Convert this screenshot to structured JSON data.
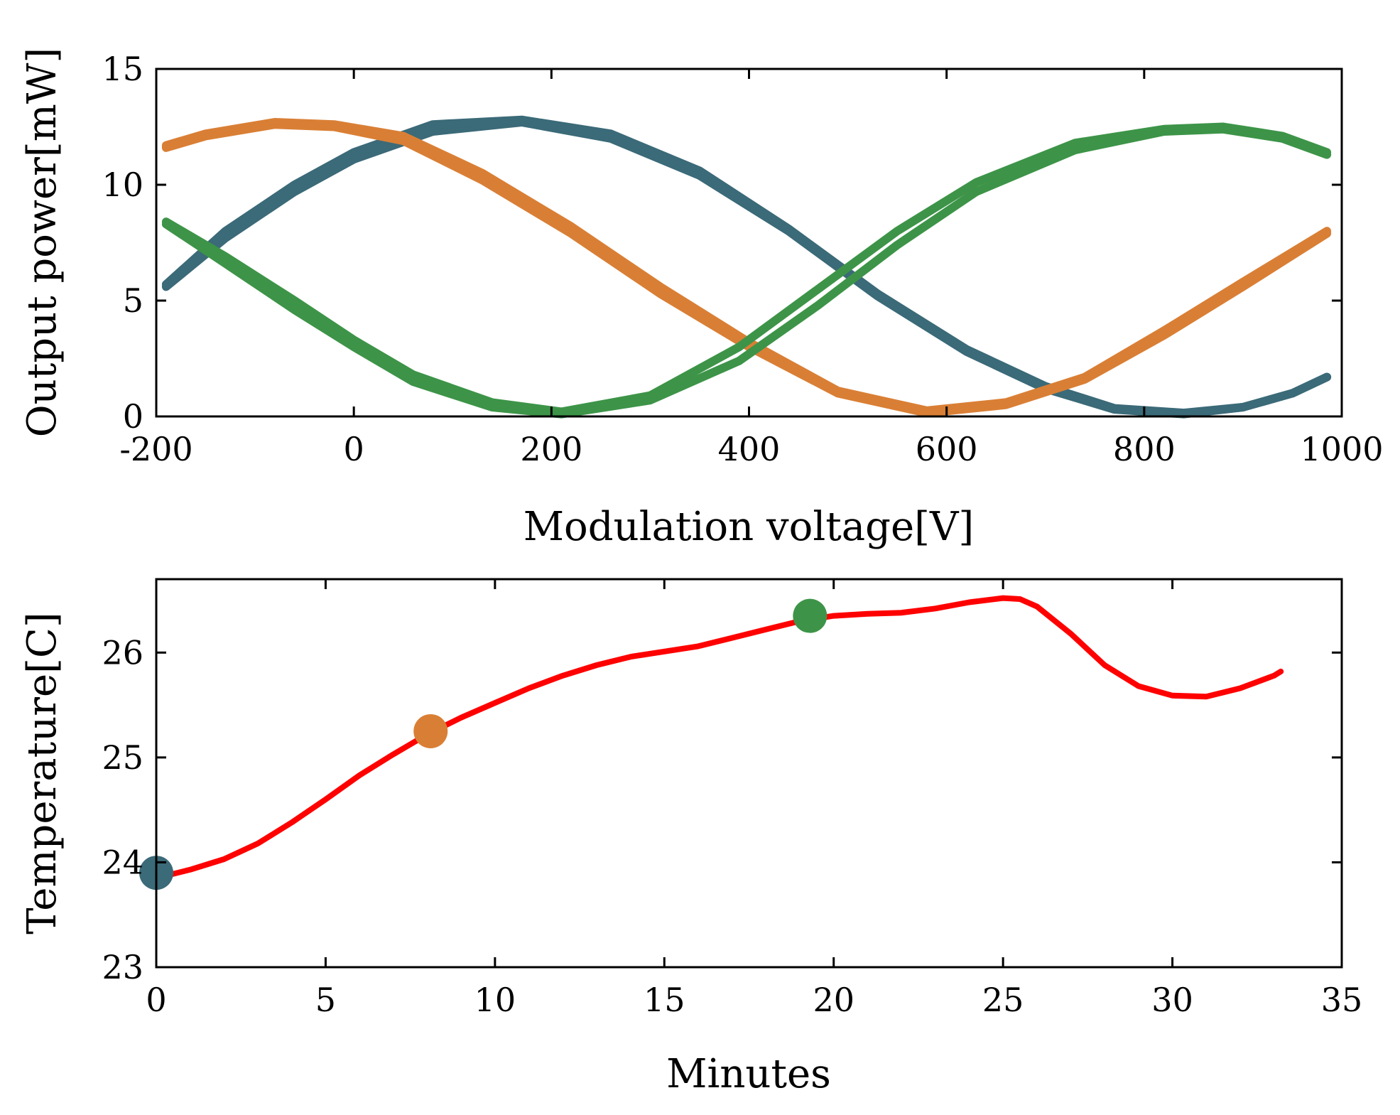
{
  "chart_data": [
    {
      "type": "line",
      "xlabel": "Modulation voltage[V]",
      "ylabel": "Output power[mW]",
      "xlim": [
        -200,
        1000
      ],
      "ylim": [
        0,
        15
      ],
      "xticks": [
        "-200",
        "0",
        "200",
        "400",
        "600",
        "800",
        "1000"
      ],
      "yticks": [
        "0",
        "5",
        "10",
        "15"
      ],
      "grid": false,
      "series": [
        {
          "color": "#3b6a78",
          "points": [
            [
              -190,
              5.6
            ],
            [
              -130,
              7.7
            ],
            [
              -60,
              9.7
            ],
            [
              0,
              11.1
            ],
            [
              80,
              12.3
            ],
            [
              170,
              12.7
            ],
            [
              260,
              12.0
            ],
            [
              350,
              10.4
            ],
            [
              440,
              8.0
            ],
            [
              530,
              5.2
            ],
            [
              620,
              2.8
            ],
            [
              700,
              1.2
            ],
            [
              770,
              0.3
            ],
            [
              840,
              0.1
            ],
            [
              900,
              0.4
            ],
            [
              950,
              1.0
            ],
            [
              985,
              1.7
            ]
          ]
        },
        {
          "color": "#3b6a78",
          "points": [
            [
              985,
              1.7
            ],
            [
              950,
              1.0
            ],
            [
              900,
              0.4
            ],
            [
              840,
              0.15
            ],
            [
              770,
              0.35
            ],
            [
              700,
              1.3
            ],
            [
              620,
              2.9
            ],
            [
              530,
              5.3
            ],
            [
              440,
              8.1
            ],
            [
              350,
              10.6
            ],
            [
              260,
              12.2
            ],
            [
              170,
              12.8
            ],
            [
              80,
              12.6
            ],
            [
              0,
              11.4
            ],
            [
              -60,
              10.0
            ],
            [
              -130,
              8.0
            ],
            [
              -190,
              5.7
            ]
          ]
        },
        {
          "color": "#d97f35",
          "points": [
            [
              -190,
              11.6
            ],
            [
              -150,
              12.1
            ],
            [
              -80,
              12.6
            ],
            [
              -20,
              12.5
            ],
            [
              50,
              11.9
            ],
            [
              130,
              10.2
            ],
            [
              220,
              7.9
            ],
            [
              310,
              5.3
            ],
            [
              400,
              3.0
            ],
            [
              490,
              1.0
            ],
            [
              580,
              0.15
            ],
            [
              660,
              0.5
            ],
            [
              740,
              1.6
            ],
            [
              820,
              3.5
            ],
            [
              900,
              5.6
            ],
            [
              985,
              7.9
            ]
          ]
        },
        {
          "color": "#d97f35",
          "points": [
            [
              985,
              8.0
            ],
            [
              900,
              5.8
            ],
            [
              820,
              3.7
            ],
            [
              740,
              1.7
            ],
            [
              660,
              0.6
            ],
            [
              580,
              0.25
            ],
            [
              490,
              1.1
            ],
            [
              400,
              3.2
            ],
            [
              310,
              5.6
            ],
            [
              220,
              8.2
            ],
            [
              130,
              10.5
            ],
            [
              50,
              12.1
            ],
            [
              -20,
              12.6
            ],
            [
              -80,
              12.7
            ],
            [
              -150,
              12.2
            ],
            [
              -190,
              11.7
            ]
          ]
        },
        {
          "color": "#3d9448",
          "points": [
            [
              -190,
              8.3
            ],
            [
              -130,
              6.6
            ],
            [
              -60,
              4.6
            ],
            [
              0,
              3.0
            ],
            [
              60,
              1.5
            ],
            [
              140,
              0.4
            ],
            [
              210,
              0.1
            ],
            [
              300,
              0.7
            ],
            [
              390,
              2.4
            ],
            [
              470,
              4.8
            ],
            [
              550,
              7.4
            ],
            [
              630,
              9.7
            ],
            [
              730,
              11.5
            ],
            [
              820,
              12.3
            ],
            [
              880,
              12.4
            ],
            [
              940,
              12.0
            ],
            [
              985,
              11.3
            ]
          ]
        },
        {
          "color": "#3d9448",
          "points": [
            [
              985,
              11.4
            ],
            [
              940,
              12.1
            ],
            [
              880,
              12.5
            ],
            [
              820,
              12.4
            ],
            [
              730,
              11.8
            ],
            [
              630,
              10.1
            ],
            [
              550,
              8.0
            ],
            [
              470,
              5.5
            ],
            [
              390,
              3.0
            ],
            [
              300,
              0.9
            ],
            [
              210,
              0.2
            ],
            [
              140,
              0.6
            ],
            [
              60,
              1.8
            ],
            [
              0,
              3.3
            ],
            [
              -60,
              5.0
            ],
            [
              -130,
              6.9
            ],
            [
              -190,
              8.4
            ]
          ]
        }
      ]
    },
    {
      "type": "line",
      "xlabel": "Minutes",
      "ylabel": "Temperature[C]",
      "xlim": [
        0,
        35
      ],
      "ylim": [
        23,
        26.7
      ],
      "xticks": [
        "0",
        "5",
        "10",
        "15",
        "20",
        "25",
        "30",
        "35"
      ],
      "yticks": [
        "23",
        "24",
        "25",
        "26"
      ],
      "grid": false,
      "series": [
        {
          "color": "#ff0000",
          "points": [
            [
              0,
              23.85
            ],
            [
              1,
              23.93
            ],
            [
              2,
              24.03
            ],
            [
              3,
              24.18
            ],
            [
              4,
              24.38
            ],
            [
              5,
              24.6
            ],
            [
              6,
              24.83
            ],
            [
              7,
              25.03
            ],
            [
              8,
              25.22
            ],
            [
              9,
              25.38
            ],
            [
              10,
              25.52
            ],
            [
              11,
              25.66
            ],
            [
              12,
              25.78
            ],
            [
              13,
              25.88
            ],
            [
              14,
              25.96
            ],
            [
              15,
              26.01
            ],
            [
              16,
              26.06
            ],
            [
              17,
              26.14
            ],
            [
              18,
              26.22
            ],
            [
              19,
              26.3
            ],
            [
              20,
              26.35
            ],
            [
              21,
              26.37
            ],
            [
              22,
              26.38
            ],
            [
              23,
              26.42
            ],
            [
              24,
              26.48
            ],
            [
              25,
              26.52
            ],
            [
              25.5,
              26.51
            ],
            [
              26,
              26.44
            ],
            [
              27,
              26.18
            ],
            [
              28,
              25.88
            ],
            [
              29,
              25.68
            ],
            [
              30,
              25.59
            ],
            [
              31,
              25.58
            ],
            [
              32,
              25.66
            ],
            [
              32.5,
              25.72
            ],
            [
              33,
              25.78
            ],
            [
              33.2,
              25.82
            ]
          ]
        }
      ],
      "markers": [
        {
          "x": 0,
          "y": 23.9,
          "color": "#3b6a78"
        },
        {
          "x": 8.1,
          "y": 25.25,
          "color": "#d97f35"
        },
        {
          "x": 19.3,
          "y": 26.35,
          "color": "#3d9448"
        }
      ]
    }
  ]
}
